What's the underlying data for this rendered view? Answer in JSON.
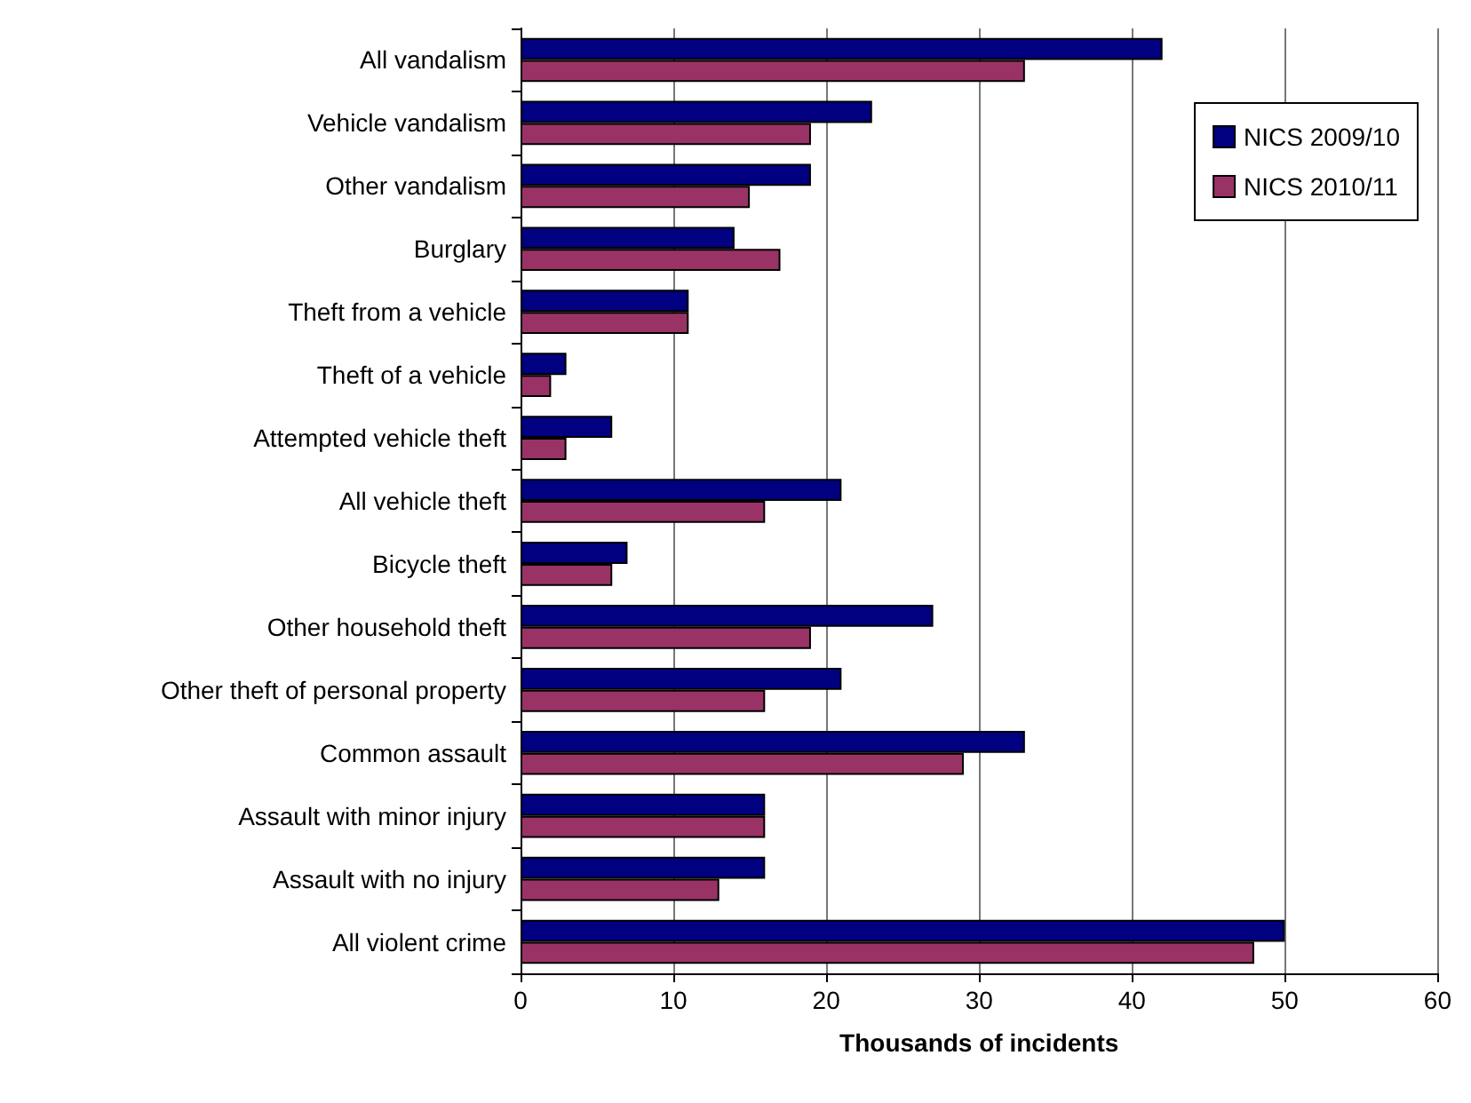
{
  "chart_data": {
    "type": "bar",
    "orientation": "horizontal",
    "xlabel": "Thousands of incidents",
    "categories": [
      "All vandalism",
      "Vehicle vandalism",
      "Other vandalism",
      "Burglary",
      "Theft from a vehicle",
      "Theft of a vehicle",
      "Attempted vehicle theft",
      "All vehicle theft",
      "Bicycle theft",
      "Other household theft",
      "Other theft of personal property",
      "Common assault",
      "Assault with minor injury",
      "Assault with no injury",
      "All violent crime"
    ],
    "series": [
      {
        "name": "NICS 2009/10",
        "color": "#000080",
        "values": [
          42,
          23,
          19,
          14,
          11,
          3,
          6,
          21,
          7,
          27,
          21,
          33,
          16,
          16,
          50
        ]
      },
      {
        "name": "NICS 2010/11",
        "color": "#993366",
        "values": [
          33,
          19,
          15,
          17,
          11,
          2,
          3,
          16,
          6,
          19,
          16,
          29,
          16,
          13,
          48
        ]
      }
    ],
    "xlim": [
      0,
      60
    ],
    "xticks": [
      0,
      10,
      20,
      30,
      40,
      50,
      60
    ],
    "grid": "x",
    "legend": "top right"
  }
}
